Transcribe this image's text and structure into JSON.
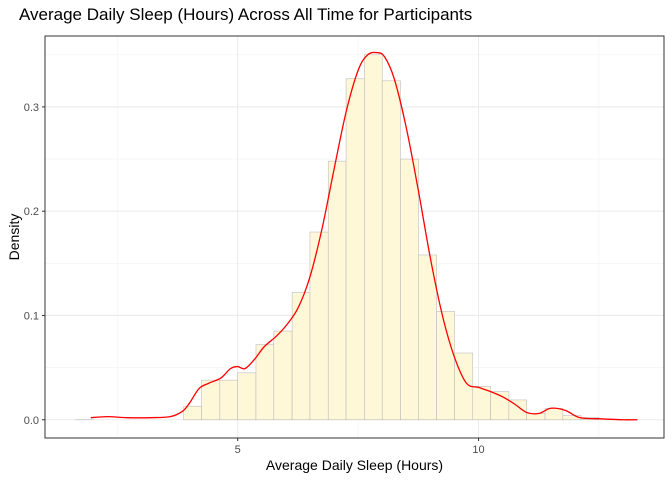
{
  "chart_data": {
    "type": "histogram",
    "title": "Average Daily Sleep (Hours) Across All Time for Participants",
    "xlabel": "Average Daily Sleep (Hours)",
    "ylabel": "Density",
    "xlim": [
      1.0,
      13.85
    ],
    "ylim": [
      -0.0175,
      0.368
    ],
    "x_ticks": [
      5,
      10
    ],
    "y_ticks": [
      0.0,
      0.1,
      0.2,
      0.3
    ],
    "y_tick_labels": [
      "0.0",
      "0.1",
      "0.2",
      "0.3"
    ],
    "grid": true,
    "theme": "bw",
    "bin_width": 0.375,
    "bins": [
      {
        "x0": 1.63,
        "x1": 2.0,
        "density": 0.0
      },
      {
        "x0": 3.88,
        "x1": 4.25,
        "density": 0.013
      },
      {
        "x0": 4.25,
        "x1": 4.63,
        "density": 0.038
      },
      {
        "x0": 4.63,
        "x1": 5.0,
        "density": 0.038
      },
      {
        "x0": 5.0,
        "x1": 5.38,
        "density": 0.045
      },
      {
        "x0": 5.38,
        "x1": 5.75,
        "density": 0.072
      },
      {
        "x0": 5.75,
        "x1": 6.13,
        "density": 0.085
      },
      {
        "x0": 6.13,
        "x1": 6.5,
        "density": 0.122
      },
      {
        "x0": 6.5,
        "x1": 6.88,
        "density": 0.18
      },
      {
        "x0": 6.88,
        "x1": 7.25,
        "density": 0.248
      },
      {
        "x0": 7.25,
        "x1": 7.63,
        "density": 0.327
      },
      {
        "x0": 7.63,
        "x1": 8.0,
        "density": 0.35
      },
      {
        "x0": 8.0,
        "x1": 8.38,
        "density": 0.325
      },
      {
        "x0": 8.38,
        "x1": 8.75,
        "density": 0.25
      },
      {
        "x0": 8.75,
        "x1": 9.13,
        "density": 0.158
      },
      {
        "x0": 9.13,
        "x1": 9.5,
        "density": 0.104
      },
      {
        "x0": 9.5,
        "x1": 9.88,
        "density": 0.064
      },
      {
        "x0": 9.88,
        "x1": 10.25,
        "density": 0.032
      },
      {
        "x0": 10.25,
        "x1": 10.63,
        "density": 0.027
      },
      {
        "x0": 10.63,
        "x1": 11.0,
        "density": 0.019
      },
      {
        "x0": 11.0,
        "x1": 11.38,
        "density": 0.006
      },
      {
        "x0": 11.38,
        "x1": 11.75,
        "density": 0.011
      },
      {
        "x0": 11.75,
        "x1": 12.13,
        "density": 0.004
      },
      {
        "x0": 12.13,
        "x1": 12.5,
        "density": 0.002
      }
    ],
    "density_curve": {
      "x": [
        1.95,
        2.3,
        2.7,
        3.2,
        3.6,
        3.85,
        4.0,
        4.2,
        4.4,
        4.65,
        4.85,
        5.0,
        5.15,
        5.35,
        5.55,
        5.8,
        6.0,
        6.25,
        6.5,
        6.75,
        7.0,
        7.25,
        7.5,
        7.7,
        7.9,
        8.05,
        8.25,
        8.5,
        8.75,
        9.0,
        9.25,
        9.5,
        9.75,
        10.0,
        10.25,
        10.5,
        10.75,
        11.0,
        11.25,
        11.5,
        11.8,
        12.1,
        12.5,
        13.0,
        13.3
      ],
      "y": [
        0.002,
        0.003,
        0.002,
        0.002,
        0.003,
        0.008,
        0.016,
        0.03,
        0.035,
        0.04,
        0.049,
        0.051,
        0.049,
        0.058,
        0.07,
        0.08,
        0.09,
        0.107,
        0.137,
        0.183,
        0.24,
        0.295,
        0.335,
        0.35,
        0.352,
        0.348,
        0.327,
        0.28,
        0.22,
        0.155,
        0.1,
        0.06,
        0.035,
        0.031,
        0.027,
        0.022,
        0.015,
        0.007,
        0.006,
        0.011,
        0.009,
        0.002,
        0.001,
        0.0,
        0.0
      ],
      "color": "#ff0000"
    },
    "bar_fill": "#fff8d8",
    "bar_stroke": "#bdbdbd"
  }
}
